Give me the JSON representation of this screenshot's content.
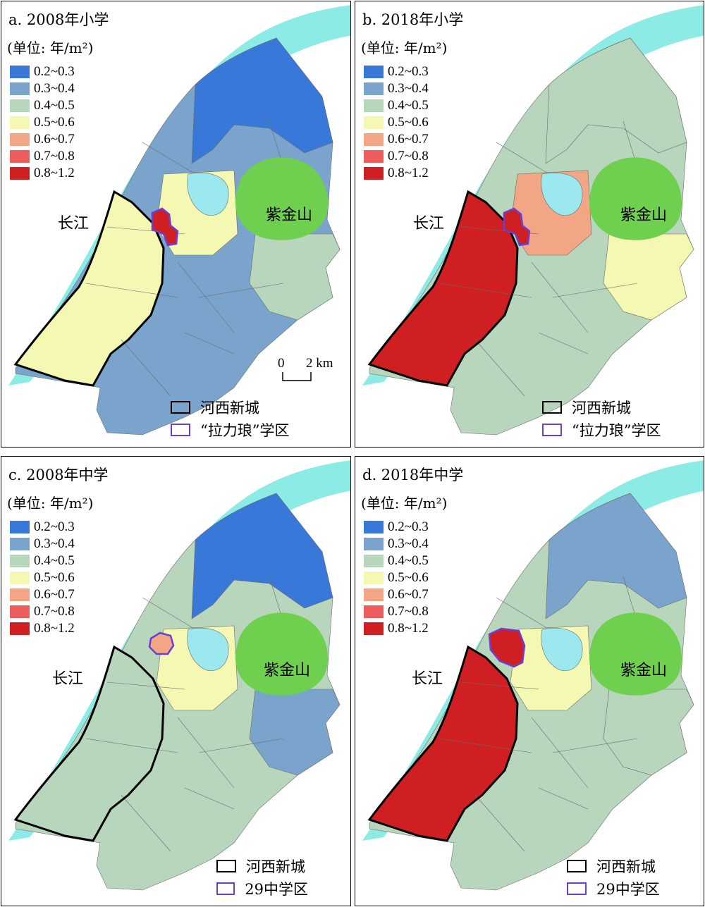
{
  "legend": {
    "classes": [
      {
        "label": "0.2~0.3",
        "color": "#3878d8"
      },
      {
        "label": "0.3~0.4",
        "color": "#7ba4cd"
      },
      {
        "label": "0.4~0.5",
        "color": "#b7d6bb"
      },
      {
        "label": "0.5~0.6",
        "color": "#f4f8b2"
      },
      {
        "label": "0.6~0.7",
        "color": "#f2a686"
      },
      {
        "label": "0.7~0.8",
        "color": "#ed5d5d"
      },
      {
        "label": "0.8~1.2",
        "color": "#d01f23"
      }
    ],
    "unit": "(单位: 年/m²)"
  },
  "colors": {
    "river": "#8cebe4",
    "mountain": "#6fcf4f",
    "lake": "#9be8ef",
    "hexi_outline": "#000000",
    "district_outline": "#6a3fd6"
  },
  "labels": {
    "river": "长江",
    "mountain": "紫金山",
    "scale_0": "0",
    "scale_2": "2 km",
    "hexi": "河西新城"
  },
  "panels": [
    {
      "id": "a",
      "title": "a. 2008年小学",
      "district_legend": "“拉力琅”学区",
      "base": 1,
      "hexi": 3,
      "district": 6,
      "east": 2,
      "north": 0,
      "center": 3
    },
    {
      "id": "b",
      "title": "b. 2018年小学",
      "district_legend": "“拉力琅”学区",
      "base": 2,
      "hexi": 6,
      "district": 6,
      "east": 3,
      "north": 2,
      "center": 4
    },
    {
      "id": "c",
      "title": "c. 2008年中学",
      "district_legend": "29中学区",
      "base": 2,
      "hexi": 2,
      "district": 4,
      "east": 1,
      "north": 0,
      "center": 3
    },
    {
      "id": "d",
      "title": "d. 2018年中学",
      "district_legend": "29中学区",
      "base": 2,
      "hexi": 6,
      "district": 6,
      "east": 2,
      "north": 1,
      "center": 3
    }
  ]
}
